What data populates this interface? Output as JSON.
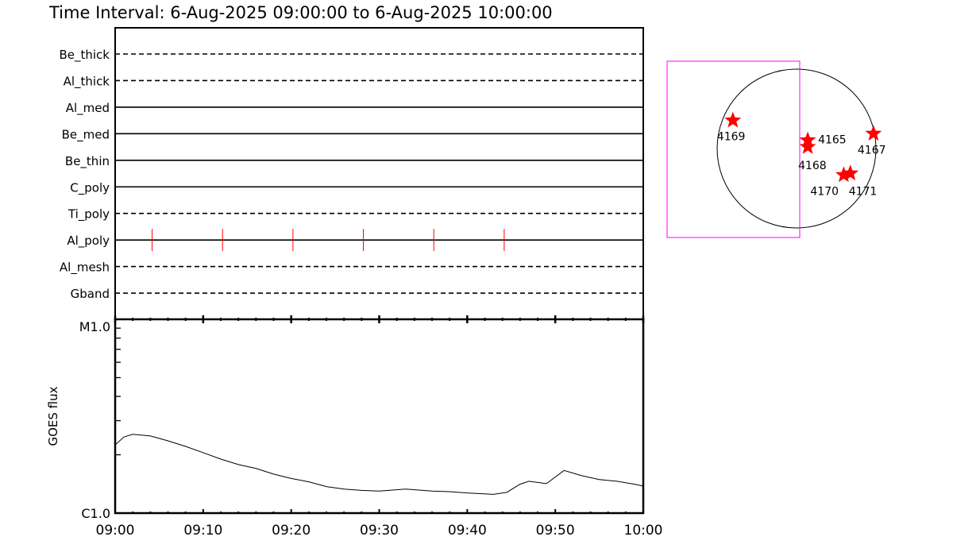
{
  "title": "Time Interval:  6-Aug-2025 09:00:00 to  6-Aug-2025 10:00:00",
  "chart_data": [
    {
      "type": "timeline",
      "rows": [
        {
          "label": "Be_thick",
          "style": "dashed"
        },
        {
          "label": "Al_thick",
          "style": "dashed"
        },
        {
          "label": "Al_med",
          "style": "solid"
        },
        {
          "label": "Be_med",
          "style": "solid"
        },
        {
          "label": "Be_thin",
          "style": "solid"
        },
        {
          "label": "C_poly",
          "style": "solid"
        },
        {
          "label": "Ti_poly",
          "style": "dashed"
        },
        {
          "label": "Al_poly",
          "style": "solid"
        },
        {
          "label": "Al_mesh",
          "style": "dashed"
        },
        {
          "label": "Gband",
          "style": "dashed"
        }
      ],
      "events": [
        {
          "row": "Al_poly",
          "minutes_after_0900": [
            4.2,
            12.2,
            20.2,
            28.2,
            36.2,
            44.2
          ],
          "color": "#ff0000"
        }
      ],
      "xlim_minutes": [
        0,
        60
      ]
    },
    {
      "type": "line",
      "ylabel": "GOES flux",
      "yscale": "log",
      "ylim": [
        1e-06,
        1e-05
      ],
      "ytick_labels": [
        "C1.0",
        "M1.0"
      ],
      "xtick_labels": [
        "09:00",
        "09:10",
        "09:20",
        "09:30",
        "09:40",
        "09:50",
        "10:00"
      ],
      "x_minutes": [
        0,
        1,
        2,
        4,
        6,
        8,
        10,
        12,
        14,
        16,
        18,
        20,
        22,
        24,
        26,
        28,
        30,
        33,
        36,
        38,
        40,
        43,
        44.5,
        46,
        47,
        49,
        51,
        53,
        55,
        57,
        59,
        60
      ],
      "values": [
        2.25e-06,
        2.47e-06,
        2.55e-06,
        2.5e-06,
        2.36e-06,
        2.21e-06,
        2.05e-06,
        1.9e-06,
        1.78e-06,
        1.7e-06,
        1.59e-06,
        1.51e-06,
        1.45e-06,
        1.37e-06,
        1.33e-06,
        1.31e-06,
        1.3e-06,
        1.33e-06,
        1.3e-06,
        1.29e-06,
        1.27e-06,
        1.25e-06,
        1.28e-06,
        1.41e-06,
        1.46e-06,
        1.42e-06,
        1.66e-06,
        1.56e-06,
        1.49e-06,
        1.46e-06,
        1.41e-06,
        1.38e-06
      ],
      "color": "#000000"
    },
    {
      "type": "scatter",
      "description_of_marks": "active regions on solar disk",
      "marker": "star",
      "marker_color": "#ff0000",
      "fov_box_color": "#ff00ff",
      "points": [
        {
          "label": "4169",
          "x_arcsec": -770,
          "y_arcsec": 340
        },
        {
          "label": "4165",
          "x_arcsec": 135,
          "y_arcsec": 100
        },
        {
          "label": "4168",
          "x_arcsec": 135,
          "y_arcsec": 20
        },
        {
          "label": "4167",
          "x_arcsec": 930,
          "y_arcsec": 180
        },
        {
          "label": "4170",
          "x_arcsec": 570,
          "y_arcsec": -320
        },
        {
          "label": "4171",
          "x_arcsec": 650,
          "y_arcsec": -300
        }
      ]
    }
  ]
}
